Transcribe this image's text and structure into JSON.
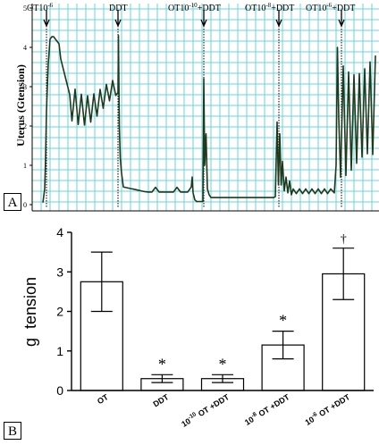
{
  "colors": {
    "grid": "#6fd0d8",
    "trace": "#1e3a1e",
    "bar_fill": "#ffffff",
    "ink": "#000000"
  },
  "panel_a": {
    "label": "A",
    "ylabel": "Uterus (Gtension)",
    "yticks": [
      "0",
      "1",
      "2",
      "3",
      "4",
      "5"
    ],
    "events": [
      {
        "label": "OT10",
        "sup": "-6",
        "suffix": ""
      },
      {
        "label": "DDT",
        "sup": "",
        "suffix": ""
      },
      {
        "label": "OT10",
        "sup": "-10",
        "suffix": "+DDT"
      },
      {
        "label": "OT10",
        "sup": "-8",
        "suffix": "+DDT"
      },
      {
        "label": "OT10",
        "sup": "-6",
        "suffix": "+DDT"
      }
    ]
  },
  "panel_b": {
    "label": "B",
    "chart_data": {
      "type": "bar",
      "ylabel": "g  tension",
      "ylim": [
        0,
        4
      ],
      "yticks": [
        "0",
        "1",
        "2",
        "3",
        "4"
      ],
      "categories": [
        {
          "pre": "OT",
          "sup": "",
          "post": ""
        },
        {
          "pre": "DDT",
          "sup": "",
          "post": ""
        },
        {
          "pre": "10",
          "sup": "-10",
          "post": " OT +DDT"
        },
        {
          "pre": "10",
          "sup": "-8",
          "post": " OT +DDT"
        },
        {
          "pre": "10",
          "sup": "-6",
          "post": " OT +DDT"
        }
      ],
      "values": [
        2.75,
        0.3,
        0.3,
        1.15,
        2.95
      ],
      "errors": [
        0.75,
        0.1,
        0.1,
        0.35,
        0.65
      ],
      "markers": [
        "",
        "*",
        "*",
        "*",
        "†"
      ]
    }
  }
}
